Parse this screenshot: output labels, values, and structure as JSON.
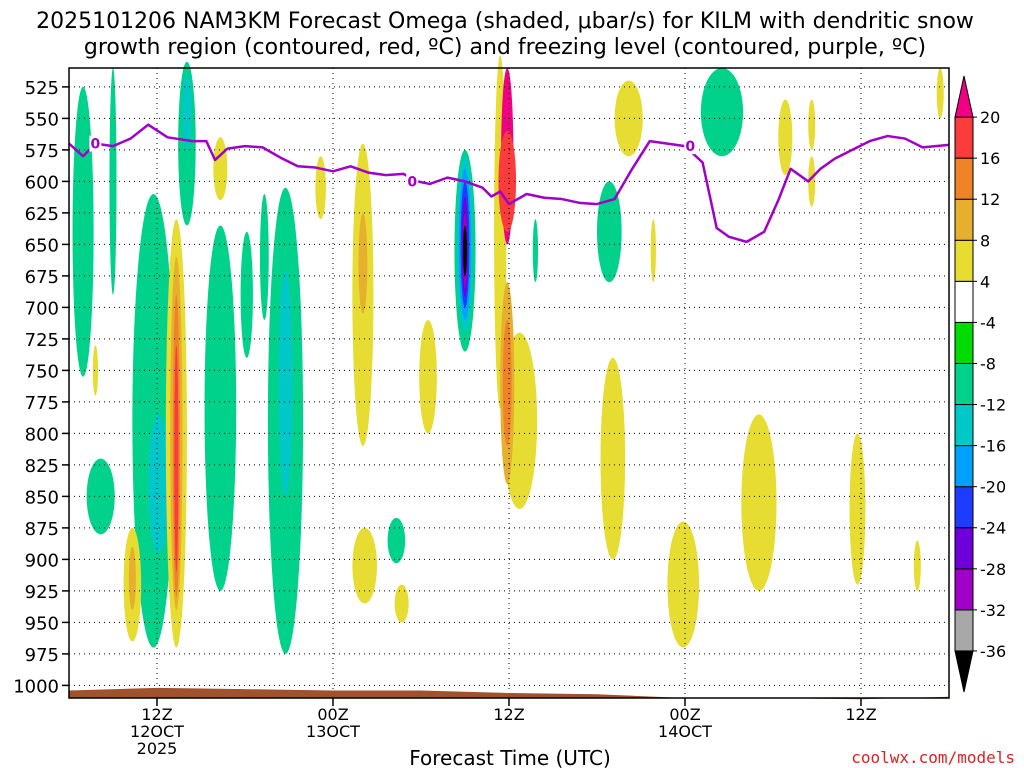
{
  "chart_data": {
    "type": "heatmap",
    "title_line1": "2025101206 NAM3KM Forecast Omega (shaded, μbar/s) for KILM with dendritic snow",
    "title_line2": "growth region (contoured, red, ºC) and freezing level (contoured, purple, ºC)",
    "xlabel": "Forecast Time (UTC)",
    "credit": "coolwx.com/models",
    "y_axis": {
      "reversed": true,
      "ylim": [
        1010,
        510
      ],
      "ticks": [
        525,
        550,
        575,
        600,
        625,
        650,
        675,
        700,
        725,
        750,
        775,
        800,
        825,
        850,
        875,
        900,
        925,
        950,
        975,
        1000
      ]
    },
    "x_axis": {
      "xlim": [
        7,
        57
      ],
      "ticks": [
        {
          "x": 12,
          "line1": "12Z",
          "line2": "12OCT",
          "line3": "2025"
        },
        {
          "x": 22,
          "line1": "00Z",
          "line2": "13OCT",
          "line3": ""
        },
        {
          "x": 32,
          "line1": "12Z",
          "line2": "",
          "line3": ""
        },
        {
          "x": 42,
          "line1": "00Z",
          "line2": "14OCT",
          "line3": ""
        },
        {
          "x": 52,
          "line1": "12Z",
          "line2": "",
          "line3": ""
        }
      ]
    },
    "colorbar": {
      "levels": [
        -36,
        -32,
        -28,
        -24,
        -20,
        -16,
        -12,
        -8,
        -4,
        4,
        8,
        12,
        16,
        20
      ],
      "labels": [
        "-36",
        "-32",
        "-28",
        "-24",
        "-20",
        "-16",
        "-12",
        "-8",
        "-4",
        "4",
        "8",
        "12",
        "16",
        "20"
      ],
      "colors": [
        "#000000",
        "#a8a8a8",
        "#a000c8",
        "#6e00dc",
        "#1e3cff",
        "#00a0ff",
        "#00c8c8",
        "#00d28c",
        "#00dc00",
        "#ffffff",
        "#e6dc32",
        "#e6af2d",
        "#f08228",
        "#fa3c3c",
        "#f00082"
      ]
    },
    "freezing_level_label": "0",
    "freezing_level": [
      [
        7,
        570
      ],
      [
        7.8,
        580
      ],
      [
        8.5,
        570
      ],
      [
        9.5,
        572
      ],
      [
        10.5,
        566
      ],
      [
        11.5,
        555
      ],
      [
        12.6,
        565
      ],
      [
        14,
        568
      ],
      [
        14.8,
        568
      ],
      [
        15.3,
        583
      ],
      [
        16,
        574
      ],
      [
        17,
        572
      ],
      [
        18,
        573
      ],
      [
        19,
        581
      ],
      [
        20,
        588
      ],
      [
        21,
        589
      ],
      [
        22,
        592
      ],
      [
        23,
        588
      ],
      [
        24,
        593
      ],
      [
        25,
        595
      ],
      [
        26,
        594
      ],
      [
        26.8,
        600
      ],
      [
        27.5,
        602
      ],
      [
        28.5,
        597
      ],
      [
        29.5,
        600
      ],
      [
        30.5,
        605
      ],
      [
        31,
        612
      ],
      [
        31.5,
        608
      ],
      [
        32,
        618
      ],
      [
        33,
        610
      ],
      [
        34,
        613
      ],
      [
        35,
        614
      ],
      [
        36,
        617
      ],
      [
        37,
        618
      ],
      [
        38,
        614
      ],
      [
        39,
        590
      ],
      [
        40,
        568
      ],
      [
        41,
        570
      ],
      [
        42,
        572
      ],
      [
        43,
        585
      ],
      [
        43.8,
        637
      ],
      [
        44.5,
        644
      ],
      [
        45.5,
        648
      ],
      [
        46.5,
        640
      ],
      [
        47.3,
        615
      ],
      [
        48,
        590
      ],
      [
        49,
        600
      ],
      [
        49.7,
        590
      ],
      [
        50.5,
        582
      ],
      [
        51.5,
        575
      ],
      [
        52.5,
        568
      ],
      [
        53.5,
        564
      ],
      [
        54.5,
        566
      ],
      [
        55.5,
        573
      ],
      [
        57,
        571
      ]
    ],
    "surface_terrain": [
      [
        7,
        1004
      ],
      [
        12,
        1002
      ],
      [
        17,
        1003
      ],
      [
        22,
        1004
      ],
      [
        27,
        1004
      ],
      [
        32,
        1006
      ],
      [
        37,
        1007
      ],
      [
        42,
        1010
      ],
      [
        47,
        1010
      ],
      [
        52,
        1011
      ],
      [
        57,
        1009
      ]
    ],
    "omega_regions": [
      {
        "level": -8,
        "cx": 7.8,
        "cy": 640,
        "rx": 0.6,
        "ry": 115
      },
      {
        "level": -8,
        "cx": 8.8,
        "cy": 850,
        "rx": 0.8,
        "ry": 30
      },
      {
        "level": -8,
        "cx": 9.5,
        "cy": 600,
        "rx": 0.2,
        "ry": 90
      },
      {
        "level": -8,
        "cx": 11.8,
        "cy": 790,
        "rx": 1.2,
        "ry": 180
      },
      {
        "level": -12,
        "cx": 12.1,
        "cy": 840,
        "rx": 0.6,
        "ry": 55
      },
      {
        "level": -8,
        "cx": 13.7,
        "cy": 570,
        "rx": 0.5,
        "ry": 65
      },
      {
        "level": -12,
        "cx": 13.7,
        "cy": 545,
        "rx": 0.25,
        "ry": 30
      },
      {
        "level": -8,
        "cx": 15.6,
        "cy": 780,
        "rx": 0.9,
        "ry": 145
      },
      {
        "level": -8,
        "cx": 17.1,
        "cy": 690,
        "rx": 0.35,
        "ry": 50
      },
      {
        "level": -8,
        "cx": 18.1,
        "cy": 660,
        "rx": 0.25,
        "ry": 50
      },
      {
        "level": -8,
        "cx": 19.3,
        "cy": 790,
        "rx": 1.0,
        "ry": 185
      },
      {
        "level": -12,
        "cx": 19.3,
        "cy": 760,
        "rx": 0.4,
        "ry": 90
      },
      {
        "level": -8,
        "cx": 25.6,
        "cy": 885,
        "rx": 0.5,
        "ry": 18
      },
      {
        "level": -8,
        "cx": 29.5,
        "cy": 655,
        "rx": 0.6,
        "ry": 80
      },
      {
        "level": -12,
        "cx": 29.5,
        "cy": 650,
        "rx": 0.45,
        "ry": 70
      },
      {
        "level": -16,
        "cx": 29.5,
        "cy": 650,
        "rx": 0.35,
        "ry": 60
      },
      {
        "level": -20,
        "cx": 29.5,
        "cy": 650,
        "rx": 0.25,
        "ry": 50
      },
      {
        "level": -24,
        "cx": 29.5,
        "cy": 652,
        "rx": 0.18,
        "ry": 40
      },
      {
        "level": -28,
        "cx": 29.5,
        "cy": 655,
        "rx": 0.12,
        "ry": 30
      },
      {
        "level": -36,
        "cx": 29.5,
        "cy": 655,
        "rx": 0.06,
        "ry": 20
      },
      {
        "level": -8,
        "cx": 33.5,
        "cy": 655,
        "rx": 0.15,
        "ry": 25
      },
      {
        "level": -8,
        "cx": 37.7,
        "cy": 640,
        "rx": 0.7,
        "ry": 40
      },
      {
        "level": -8,
        "cx": 44.1,
        "cy": 545,
        "rx": 1.2,
        "ry": 35
      },
      {
        "level": 4,
        "cx": 8.5,
        "cy": 750,
        "rx": 0.15,
        "ry": 20
      },
      {
        "level": 4,
        "cx": 10.6,
        "cy": 920,
        "rx": 0.5,
        "ry": 45
      },
      {
        "level": 8,
        "cx": 10.6,
        "cy": 915,
        "rx": 0.2,
        "ry": 25
      },
      {
        "level": 4,
        "cx": 13.1,
        "cy": 800,
        "rx": 0.6,
        "ry": 170
      },
      {
        "level": 8,
        "cx": 13.1,
        "cy": 800,
        "rx": 0.35,
        "ry": 140
      },
      {
        "level": 12,
        "cx": 13.1,
        "cy": 810,
        "rx": 0.2,
        "ry": 120
      },
      {
        "level": 16,
        "cx": 13.1,
        "cy": 820,
        "rx": 0.1,
        "ry": 90
      },
      {
        "level": 4,
        "cx": 15.6,
        "cy": 590,
        "rx": 0.4,
        "ry": 25
      },
      {
        "level": 4,
        "cx": 21.3,
        "cy": 605,
        "rx": 0.3,
        "ry": 25
      },
      {
        "level": 4,
        "cx": 23.7,
        "cy": 690,
        "rx": 0.6,
        "ry": 120
      },
      {
        "level": 8,
        "cx": 23.7,
        "cy": 665,
        "rx": 0.25,
        "ry": 40
      },
      {
        "level": 4,
        "cx": 23.8,
        "cy": 905,
        "rx": 0.7,
        "ry": 30
      },
      {
        "level": 4,
        "cx": 25.9,
        "cy": 935,
        "rx": 0.4,
        "ry": 15
      },
      {
        "level": 4,
        "cx": 27.4,
        "cy": 755,
        "rx": 0.5,
        "ry": 45
      },
      {
        "level": 4,
        "cx": 31.5,
        "cy": 640,
        "rx": 0.35,
        "ry": 140
      },
      {
        "level": 4,
        "cx": 32.6,
        "cy": 790,
        "rx": 1.0,
        "ry": 70
      },
      {
        "level": 8,
        "cx": 31.9,
        "cy": 760,
        "rx": 0.4,
        "ry": 80
      },
      {
        "level": 12,
        "cx": 31.9,
        "cy": 760,
        "rx": 0.25,
        "ry": 50
      },
      {
        "level": 20,
        "cx": 31.9,
        "cy": 580,
        "rx": 0.35,
        "ry": 70
      },
      {
        "level": 16,
        "cx": 31.9,
        "cy": 600,
        "rx": 0.5,
        "ry": 40
      },
      {
        "level": 4,
        "cx": 37.9,
        "cy": 820,
        "rx": 0.7,
        "ry": 80
      },
      {
        "level": 4,
        "cx": 38.8,
        "cy": 550,
        "rx": 0.8,
        "ry": 30
      },
      {
        "level": 4,
        "cx": 40.2,
        "cy": 655,
        "rx": 0.15,
        "ry": 25
      },
      {
        "level": 4,
        "cx": 41.9,
        "cy": 920,
        "rx": 0.9,
        "ry": 50
      },
      {
        "level": 4,
        "cx": 46.2,
        "cy": 855,
        "rx": 1.0,
        "ry": 70
      },
      {
        "level": 4,
        "cx": 47.7,
        "cy": 565,
        "rx": 0.4,
        "ry": 30
      },
      {
        "level": 4,
        "cx": 49.2,
        "cy": 600,
        "rx": 0.2,
        "ry": 20
      },
      {
        "level": 4,
        "cx": 49.2,
        "cy": 555,
        "rx": 0.2,
        "ry": 20
      },
      {
        "level": 4,
        "cx": 51.8,
        "cy": 860,
        "rx": 0.45,
        "ry": 60
      },
      {
        "level": 4,
        "cx": 55.2,
        "cy": 905,
        "rx": 0.2,
        "ry": 20
      },
      {
        "level": 4,
        "cx": 56.5,
        "cy": 530,
        "rx": 0.2,
        "ry": 20
      }
    ]
  }
}
